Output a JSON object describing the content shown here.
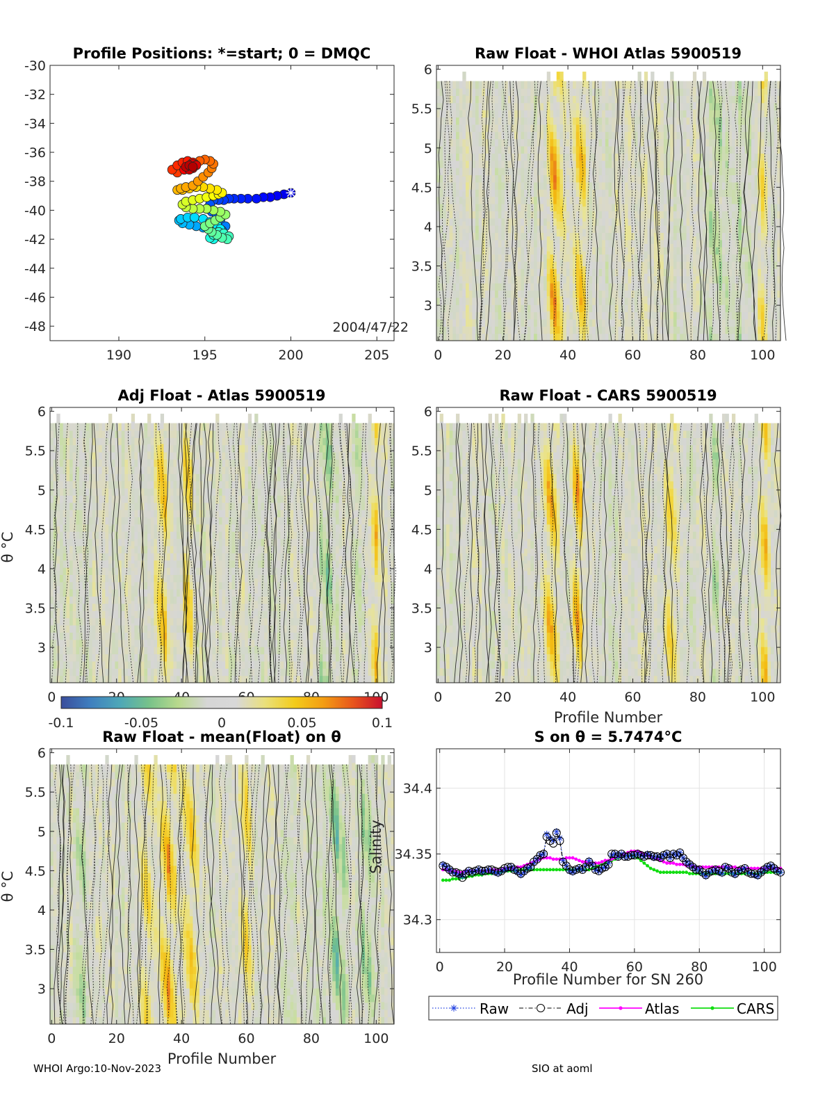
{
  "footer": {
    "left": "WHOI Argo:10-Nov-2023",
    "right": "SIO at aoml"
  },
  "colorbar": {
    "ticks": [
      "-0.1",
      "-0.05",
      "0",
      "0.05",
      "0.1"
    ],
    "colors": [
      "#3a4d9c",
      "#3f7fbf",
      "#4da7b8",
      "#77c28a",
      "#b8d98c",
      "#d6d6d6",
      "#d8d8d8",
      "#eae07a",
      "#f3cc1a",
      "#f39c12",
      "#e8551c",
      "#c8102e"
    ]
  },
  "chart_data": [
    {
      "id": "positions",
      "type": "scatter",
      "title": "Profile Positions: *=start; 0 = DMQC",
      "xlim": [
        186,
        206
      ],
      "ylim": [
        -49,
        -30
      ],
      "xticks": [
        "190",
        "195",
        "200",
        "205"
      ],
      "yticks": [
        "-30",
        "-32",
        "-34",
        "-36",
        "-38",
        "-40",
        "-42",
        "-44",
        "-46",
        "-48"
      ],
      "annotation": "2004/47/22",
      "start_marker": [
        200.0,
        -38.8
      ],
      "track_lon": [
        200.0,
        199.6,
        199.2,
        198.8,
        198.4,
        198.0,
        197.5,
        197.1,
        196.7,
        196.4,
        196.1,
        195.8,
        195.5,
        195.3,
        195.1,
        195.4,
        195.7,
        195.9,
        196.2,
        196.0,
        195.7,
        195.3,
        194.9,
        194.5,
        194.1,
        193.7,
        193.5,
        193.6,
        194.0,
        194.4,
        194.9,
        195.3,
        195.7,
        195.9,
        196.0,
        195.8,
        195.5,
        195.3,
        195.5,
        195.8,
        196.1,
        196.4,
        196.3,
        196.0,
        195.7,
        195.4,
        195.2,
        195.0,
        195.3,
        195.6,
        195.9,
        196.2,
        195.9,
        195.5,
        195.1,
        194.7,
        194.3,
        193.9,
        193.7,
        193.9,
        194.3,
        194.7,
        195.1,
        195.5,
        195.8,
        196.0,
        195.7,
        195.3,
        194.9,
        194.5,
        194.1,
        193.7,
        193.4,
        193.6,
        193.9,
        194.3,
        194.6,
        194.9,
        195.2,
        195.4,
        195.5,
        195.3,
        195.0,
        194.7,
        194.4,
        194.1,
        193.8,
        193.4,
        193.1,
        193.4,
        193.7,
        194.0,
        194.3,
        194.3,
        194.0,
        193.8,
        194.0,
        194.3,
        194.5,
        194.3,
        194.1,
        193.9,
        194.1,
        194.3
      ],
      "track_lat": [
        -38.8,
        -38.9,
        -39.0,
        -39.1,
        -39.1,
        -39.2,
        -39.2,
        -39.2,
        -39.2,
        -39.2,
        -39.3,
        -39.3,
        -39.3,
        -39.6,
        -39.9,
        -40.1,
        -40.4,
        -40.7,
        -41.1,
        -41.4,
        -41.5,
        -41.3,
        -41.2,
        -41.1,
        -41.0,
        -40.9,
        -40.7,
        -40.6,
        -40.5,
        -40.5,
        -40.6,
        -40.8,
        -41.0,
        -41.3,
        -41.6,
        -41.8,
        -42.0,
        -41.9,
        -41.7,
        -41.5,
        -41.6,
        -41.8,
        -42.0,
        -41.9,
        -41.7,
        -41.5,
        -41.3,
        -41.1,
        -40.9,
        -40.7,
        -40.5,
        -40.3,
        -40.1,
        -40.0,
        -39.9,
        -39.9,
        -39.9,
        -39.8,
        -39.6,
        -39.4,
        -39.3,
        -39.2,
        -39.1,
        -39.0,
        -38.9,
        -38.8,
        -38.6,
        -38.5,
        -38.4,
        -38.4,
        -38.5,
        -38.6,
        -38.6,
        -38.5,
        -38.4,
        -38.3,
        -38.0,
        -37.7,
        -37.4,
        -37.1,
        -36.8,
        -36.6,
        -36.5,
        -36.6,
        -36.8,
        -37.0,
        -37.2,
        -37.4,
        -37.2,
        -36.9,
        -36.7,
        -36.6,
        -36.7,
        -36.9,
        -37.1,
        -37.2,
        -37.0,
        -36.8,
        -36.9,
        -37.1,
        -37.2,
        -37.0,
        -36.9,
        -37.0
      ]
    },
    {
      "id": "raw-whoi",
      "type": "heatmap",
      "title": "Raw Float - WHOI Atlas  5900519",
      "xlim": [
        -0.5,
        105.5
      ],
      "ylim": [
        2.55,
        6.05
      ],
      "xticks": [
        "0",
        "20",
        "40",
        "60",
        "80",
        "100"
      ],
      "yticks": [
        "3",
        "3.5",
        "4",
        "4.5",
        "5",
        "5.5",
        "6"
      ],
      "xlabel": "",
      "ylabel": "",
      "seed": 11,
      "hot_columns": [
        [
          36,
          0.055,
          2.0
        ],
        [
          44,
          0.05,
          1.5
        ],
        [
          100,
          0.04,
          1.5
        ]
      ],
      "cool_columns": [
        [
          86,
          -0.025,
          2.5
        ],
        [
          94,
          -0.015,
          2.0
        ]
      ]
    },
    {
      "id": "adj-atlas",
      "type": "heatmap",
      "title": "Adj Float - Atlas  5900519",
      "xlim": [
        -0.5,
        105.5
      ],
      "ylim": [
        2.55,
        6.05
      ],
      "xticks": [
        "0",
        "20",
        "40",
        "60",
        "80",
        "100"
      ],
      "yticks": [
        "3",
        "3.5",
        "4",
        "4.5",
        "5",
        "5.5",
        "6"
      ],
      "xlabel": "",
      "ylabel": "θ °C",
      "seed": 23,
      "hot_columns": [
        [
          34,
          0.05,
          1.8
        ],
        [
          42,
          0.045,
          1.5
        ],
        [
          100,
          0.04,
          1.5
        ]
      ],
      "cool_columns": [
        [
          85,
          -0.025,
          2.5
        ],
        [
          94,
          -0.02,
          2.0
        ]
      ]
    },
    {
      "id": "raw-cars",
      "type": "heatmap",
      "title": "Raw Float - CARS  5900519",
      "xlim": [
        -0.5,
        105.5
      ],
      "ylim": [
        2.55,
        6.05
      ],
      "xticks": [
        "0",
        "20",
        "40",
        "60",
        "80",
        "100"
      ],
      "yticks": [
        "3",
        "3.5",
        "4",
        "4.5",
        "5",
        "5.5",
        "6"
      ],
      "xlabel": "Profile Number",
      "ylabel": "",
      "seed": 37,
      "hot_columns": [
        [
          35,
          0.06,
          2.2
        ],
        [
          43,
          0.05,
          1.6
        ],
        [
          72,
          0.035,
          2.0
        ],
        [
          101,
          0.04,
          1.5
        ]
      ],
      "cool_columns": [
        [
          86,
          -0.015,
          2.0
        ]
      ]
    },
    {
      "id": "raw-mean",
      "type": "heatmap",
      "title": "Raw Float - mean(Float) on θ",
      "xlim": [
        -0.5,
        105.5
      ],
      "ylim": [
        2.55,
        6.05
      ],
      "xticks": [
        "0",
        "20",
        "40",
        "60",
        "80",
        "100"
      ],
      "yticks": [
        "3",
        "3.5",
        "4",
        "4.5",
        "5",
        "5.5",
        "6"
      ],
      "xlabel": "Profile Number",
      "ylabel": "θ °C",
      "seed": 53,
      "hot_columns": [
        [
          36,
          0.055,
          2.5
        ],
        [
          43,
          0.05,
          2.0
        ],
        [
          29,
          0.04,
          1.8
        ],
        [
          60,
          0.03,
          2.2
        ]
      ],
      "cool_columns": [
        [
          88,
          -0.03,
          3.0
        ],
        [
          97,
          -0.025,
          2.5
        ],
        [
          10,
          -0.015,
          2.0
        ]
      ]
    },
    {
      "id": "salinity",
      "type": "line",
      "title": "S on θ = 5.7474°C",
      "xlabel": "Profile Number for SN 260",
      "ylabel": "Salinity",
      "xlim": [
        -1,
        105
      ],
      "ylim": [
        34.275,
        34.43
      ],
      "xticks": [
        "0",
        "20",
        "40",
        "60",
        "80",
        "100"
      ],
      "yticks": [
        "34.3",
        "34.35",
        "34.4"
      ],
      "legend_position": "bottom",
      "series": [
        {
          "name": "Raw",
          "color": "#1f3fe0",
          "values": [
            34.342,
            34.34,
            34.338,
            34.336,
            34.335,
            34.334,
            34.333,
            34.336,
            34.337,
            34.336,
            34.337,
            34.338,
            34.336,
            34.337,
            34.338,
            34.337,
            34.336,
            34.335,
            34.337,
            34.338,
            34.339,
            34.34,
            34.338,
            34.336,
            34.334,
            34.336,
            34.339,
            34.34,
            34.343,
            34.346,
            34.349,
            34.35,
            34.365,
            34.362,
            34.36,
            34.367,
            34.362,
            34.345,
            34.341,
            34.337,
            34.336,
            34.338,
            34.339,
            34.338,
            34.341,
            34.345,
            34.342,
            34.338,
            34.337,
            34.339,
            34.34,
            34.343,
            34.349,
            34.35,
            34.348,
            34.35,
            34.348,
            34.348,
            34.349,
            34.349,
            34.35,
            34.349,
            34.348,
            34.35,
            34.349,
            34.347,
            34.348,
            34.347,
            34.349,
            34.35,
            34.347,
            34.35,
            34.349,
            34.351,
            34.347,
            34.344,
            34.342,
            34.34,
            34.338,
            34.338,
            34.335,
            34.333,
            34.336,
            34.337,
            34.338,
            34.336,
            34.335,
            34.34,
            34.339,
            34.336,
            34.334,
            34.337,
            34.338,
            34.339,
            34.336,
            34.335,
            34.334,
            34.333,
            34.336,
            34.338,
            34.34,
            34.341,
            34.339,
            34.337,
            34.336
          ]
        },
        {
          "name": "Adj",
          "color": "#000000",
          "values": [
            34.341,
            34.34,
            34.338,
            34.336,
            34.336,
            34.335,
            34.332,
            34.335,
            34.337,
            34.336,
            34.337,
            34.338,
            34.337,
            34.337,
            34.338,
            34.338,
            34.337,
            34.336,
            34.337,
            34.339,
            34.34,
            34.34,
            34.338,
            34.337,
            34.335,
            34.337,
            34.339,
            34.34,
            34.344,
            34.346,
            34.349,
            34.35,
            34.363,
            34.36,
            34.358,
            34.366,
            34.36,
            34.344,
            34.341,
            34.338,
            34.337,
            34.338,
            34.339,
            34.338,
            34.34,
            34.344,
            34.341,
            34.338,
            34.337,
            34.339,
            34.34,
            34.342,
            34.35,
            34.35,
            34.348,
            34.35,
            34.348,
            34.348,
            34.349,
            34.349,
            34.35,
            34.349,
            34.348,
            34.349,
            34.349,
            34.348,
            34.348,
            34.347,
            34.349,
            34.35,
            34.347,
            34.35,
            34.349,
            34.351,
            34.347,
            34.344,
            34.342,
            34.34,
            34.338,
            34.338,
            34.336,
            34.334,
            34.336,
            34.337,
            34.338,
            34.337,
            34.336,
            34.34,
            34.339,
            34.336,
            34.335,
            34.337,
            34.338,
            34.339,
            34.336,
            34.335,
            34.335,
            34.334,
            34.336,
            34.338,
            34.34,
            34.341,
            34.339,
            34.337,
            34.336
          ]
        },
        {
          "name": "Atlas",
          "color": "#ff00ff",
          "values": [
            34.338,
            34.338,
            34.337,
            34.337,
            34.337,
            34.336,
            34.336,
            34.337,
            34.337,
            34.337,
            34.337,
            34.337,
            34.337,
            34.337,
            34.337,
            34.338,
            34.338,
            34.338,
            34.338,
            34.339,
            34.339,
            34.339,
            34.339,
            34.34,
            34.34,
            34.341,
            34.342,
            34.343,
            34.344,
            34.345,
            34.346,
            34.347,
            34.347,
            34.347,
            34.346,
            34.346,
            34.346,
            34.346,
            34.347,
            34.347,
            34.347,
            34.346,
            34.345,
            34.344,
            34.344,
            34.343,
            34.343,
            34.343,
            34.343,
            34.344,
            34.345,
            34.345,
            34.346,
            34.347,
            34.348,
            34.349,
            34.35,
            34.351,
            34.352,
            34.352,
            34.352,
            34.351,
            34.35,
            34.349,
            34.348,
            34.347,
            34.346,
            34.345,
            34.344,
            34.343,
            34.343,
            34.343,
            34.342,
            34.342,
            34.342,
            34.341,
            34.341,
            34.341,
            34.34,
            34.34,
            34.34,
            34.34,
            34.34,
            34.34,
            34.34,
            34.34,
            34.34,
            34.34,
            34.34,
            34.34,
            34.34,
            34.339,
            34.339,
            34.339,
            34.339,
            34.339,
            34.339,
            34.339,
            34.339,
            34.339,
            34.339,
            34.339,
            34.339,
            34.339,
            34.339
          ]
        },
        {
          "name": "CARS",
          "color": "#11dd11",
          "values": [
            34.33,
            34.33,
            34.33,
            34.331,
            34.331,
            34.331,
            34.332,
            34.332,
            34.333,
            34.333,
            34.334,
            34.334,
            34.334,
            34.335,
            34.335,
            34.335,
            34.336,
            34.336,
            34.336,
            34.337,
            34.337,
            34.337,
            34.337,
            34.338,
            34.338,
            34.338,
            34.338,
            34.338,
            34.338,
            34.338,
            34.338,
            34.338,
            34.338,
            34.338,
            34.338,
            34.338,
            34.338,
            34.338,
            34.338,
            34.338,
            34.338,
            34.338,
            34.338,
            34.338,
            34.338,
            34.338,
            34.339,
            34.34,
            34.341,
            34.342,
            34.343,
            34.344,
            34.345,
            34.346,
            34.347,
            34.348,
            34.349,
            34.349,
            34.349,
            34.348,
            34.347,
            34.345,
            34.343,
            34.341,
            34.339,
            34.338,
            34.337,
            34.336,
            34.336,
            34.336,
            34.336,
            34.336,
            34.336,
            34.336,
            34.336,
            34.336,
            34.335,
            34.335,
            34.335,
            34.335,
            34.335,
            34.335,
            34.335,
            34.335,
            34.335,
            34.335,
            34.335,
            34.335,
            34.335,
            34.335,
            34.335,
            34.335,
            34.335,
            34.335,
            34.335,
            34.335,
            34.335,
            34.335,
            34.335,
            34.336,
            34.336,
            34.336,
            34.336,
            34.336,
            34.336
          ]
        }
      ]
    }
  ]
}
